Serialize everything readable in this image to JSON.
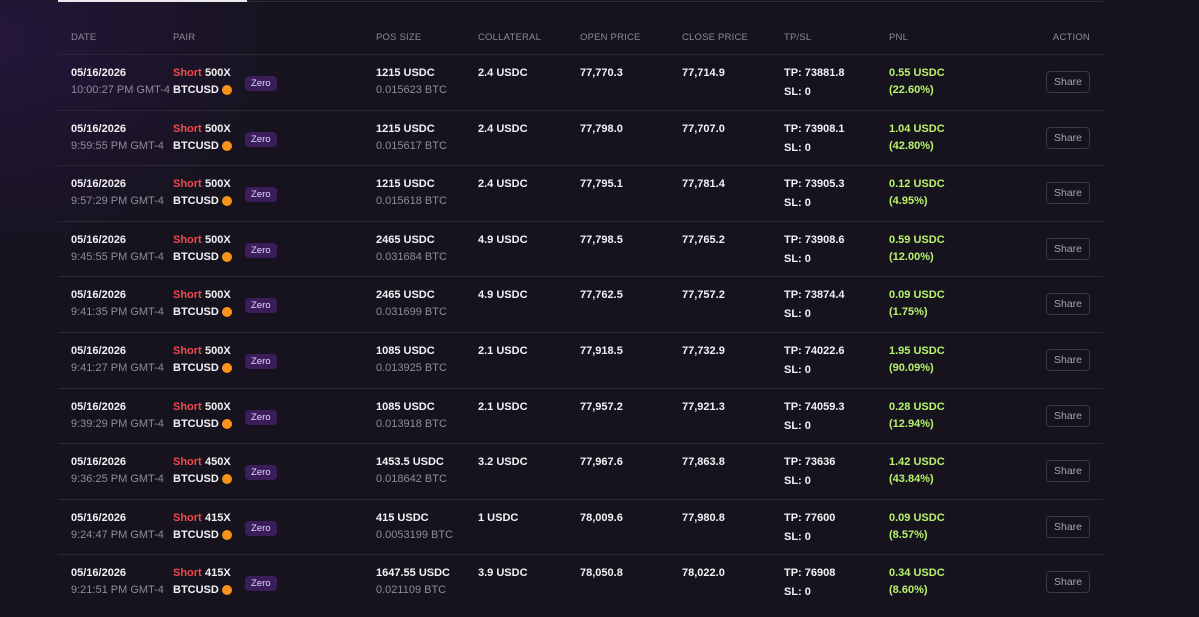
{
  "table": {
    "headers": [
      "DATE",
      "PAIR",
      "POS SIZE",
      "COLLATERAL",
      "OPEN PRICE",
      "CLOSE PRICE",
      "TP/SL",
      "PNL",
      "ACTION"
    ],
    "rows": [
      {
        "date": "05/16/2026",
        "time": "10:00:27 PM GMT-4",
        "side": "Short",
        "leverage": "500X",
        "pair": "BTCUSD",
        "badge": "Zero",
        "size": "1215 USDC",
        "size_btc": "0.015623 BTC",
        "collateral": "2.4 USDC",
        "open": "77,770.3",
        "close": "77,714.9",
        "tp": "TP: 73881.8",
        "sl": "SL: 0",
        "pnl": "0.55 USDC",
        "pnl_pct": "(22.60%)",
        "action": "Share"
      },
      {
        "date": "05/16/2026",
        "time": "9:59:55 PM GMT-4",
        "side": "Short",
        "leverage": "500X",
        "pair": "BTCUSD",
        "badge": "Zero",
        "size": "1215 USDC",
        "size_btc": "0.015617 BTC",
        "collateral": "2.4 USDC",
        "open": "77,798.0",
        "close": "77,707.0",
        "tp": "TP: 73908.1",
        "sl": "SL: 0",
        "pnl": "1.04 USDC",
        "pnl_pct": "(42.80%)",
        "action": "Share"
      },
      {
        "date": "05/16/2026",
        "time": "9:57:29 PM GMT-4",
        "side": "Short",
        "leverage": "500X",
        "pair": "BTCUSD",
        "badge": "Zero",
        "size": "1215 USDC",
        "size_btc": "0.015618 BTC",
        "collateral": "2.4 USDC",
        "open": "77,795.1",
        "close": "77,781.4",
        "tp": "TP: 73905.3",
        "sl": "SL: 0",
        "pnl": "0.12 USDC",
        "pnl_pct": "(4.95%)",
        "action": "Share"
      },
      {
        "date": "05/16/2026",
        "time": "9:45:55 PM GMT-4",
        "side": "Short",
        "leverage": "500X",
        "pair": "BTCUSD",
        "badge": "Zero",
        "size": "2465 USDC",
        "size_btc": "0.031684 BTC",
        "collateral": "4.9 USDC",
        "open": "77,798.5",
        "close": "77,765.2",
        "tp": "TP: 73908.6",
        "sl": "SL: 0",
        "pnl": "0.59 USDC",
        "pnl_pct": "(12.00%)",
        "action": "Share"
      },
      {
        "date": "05/16/2026",
        "time": "9:41:35 PM GMT-4",
        "side": "Short",
        "leverage": "500X",
        "pair": "BTCUSD",
        "badge": "Zero",
        "size": "2465 USDC",
        "size_btc": "0.031699 BTC",
        "collateral": "4.9 USDC",
        "open": "77,762.5",
        "close": "77,757.2",
        "tp": "TP: 73874.4",
        "sl": "SL: 0",
        "pnl": "0.09 USDC",
        "pnl_pct": "(1.75%)",
        "action": "Share"
      },
      {
        "date": "05/16/2026",
        "time": "9:41:27 PM GMT-4",
        "side": "Short",
        "leverage": "500X",
        "pair": "BTCUSD",
        "badge": "Zero",
        "size": "1085 USDC",
        "size_btc": "0.013925 BTC",
        "collateral": "2.1 USDC",
        "open": "77,918.5",
        "close": "77,732.9",
        "tp": "TP: 74022.6",
        "sl": "SL: 0",
        "pnl": "1.95 USDC",
        "pnl_pct": "(90.09%)",
        "action": "Share"
      },
      {
        "date": "05/16/2026",
        "time": "9:39:29 PM GMT-4",
        "side": "Short",
        "leverage": "500X",
        "pair": "BTCUSD",
        "badge": "Zero",
        "size": "1085 USDC",
        "size_btc": "0.013918 BTC",
        "collateral": "2.1 USDC",
        "open": "77,957.2",
        "close": "77,921.3",
        "tp": "TP: 74059.3",
        "sl": "SL: 0",
        "pnl": "0.28 USDC",
        "pnl_pct": "(12.94%)",
        "action": "Share"
      },
      {
        "date": "05/16/2026",
        "time": "9:36:25 PM GMT-4",
        "side": "Short",
        "leverage": "450X",
        "pair": "BTCUSD",
        "badge": "Zero",
        "size": "1453.5 USDC",
        "size_btc": "0.018642 BTC",
        "collateral": "3.2 USDC",
        "open": "77,967.6",
        "close": "77,863.8",
        "tp": "TP: 73636",
        "sl": "SL: 0",
        "pnl": "1.42 USDC",
        "pnl_pct": "(43.84%)",
        "action": "Share"
      },
      {
        "date": "05/16/2026",
        "time": "9:24:47 PM GMT-4",
        "side": "Short",
        "leverage": "415X",
        "pair": "BTCUSD",
        "badge": "Zero",
        "size": "415 USDC",
        "size_btc": "0.0053199 BTC",
        "collateral": "1 USDC",
        "open": "78,009.6",
        "close": "77,980.8",
        "tp": "TP: 77600",
        "sl": "SL: 0",
        "pnl": "0.09 USDC",
        "pnl_pct": "(8.57%)",
        "action": "Share"
      },
      {
        "date": "05/16/2026",
        "time": "9:21:51 PM GMT-4",
        "side": "Short",
        "leverage": "415X",
        "pair": "BTCUSD",
        "badge": "Zero",
        "size": "1647.55 USDC",
        "size_btc": "0.021109 BTC",
        "collateral": "3.9 USDC",
        "open": "78,050.8",
        "close": "78,022.0",
        "tp": "TP: 76908",
        "sl": "SL: 0",
        "pnl": "0.34 USDC",
        "pnl_pct": "(8.60%)",
        "action": "Share"
      }
    ]
  }
}
